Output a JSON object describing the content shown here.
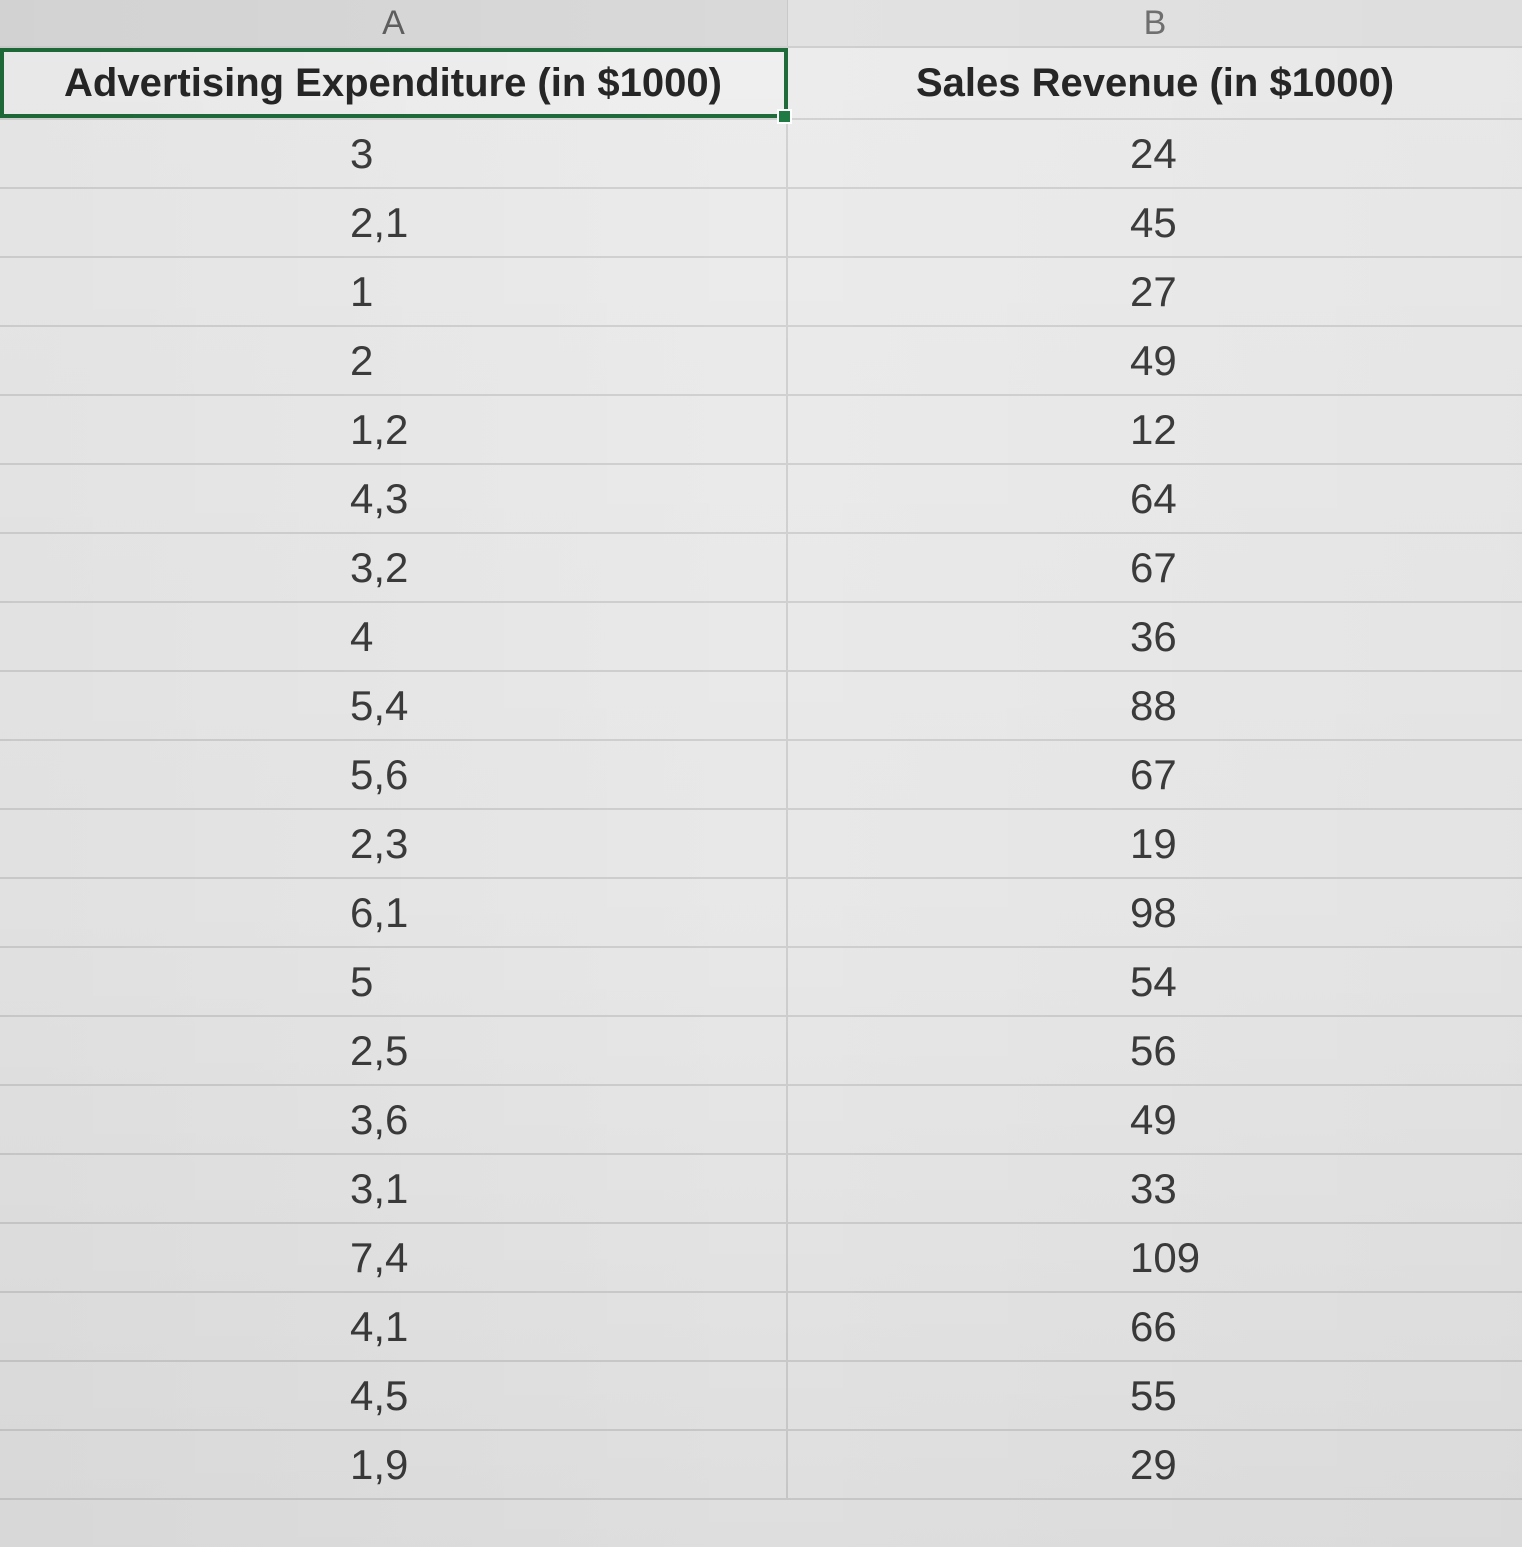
{
  "columns": [
    "A",
    "B"
  ],
  "headers": {
    "a": "Advertising Expenditure (in $1000)",
    "b": "Sales Revenue (in $1000)"
  },
  "rows": [
    {
      "a": "3",
      "b": "24"
    },
    {
      "a": "2,1",
      "b": "45"
    },
    {
      "a": "1",
      "b": "27"
    },
    {
      "a": "2",
      "b": "49"
    },
    {
      "a": "1,2",
      "b": "12"
    },
    {
      "a": "4,3",
      "b": "64"
    },
    {
      "a": "3,2",
      "b": "67"
    },
    {
      "a": "4",
      "b": "36"
    },
    {
      "a": "5,4",
      "b": "88"
    },
    {
      "a": "5,6",
      "b": "67"
    },
    {
      "a": "2,3",
      "b": "19"
    },
    {
      "a": "6,1",
      "b": "98"
    },
    {
      "a": "5",
      "b": "54"
    },
    {
      "a": "2,5",
      "b": "56"
    },
    {
      "a": "3,6",
      "b": "49"
    },
    {
      "a": "3,1",
      "b": "33"
    },
    {
      "a": "7,4",
      "b": "109"
    },
    {
      "a": "4,1",
      "b": "66"
    },
    {
      "a": "4,5",
      "b": "55"
    },
    {
      "a": "1,9",
      "b": "29"
    }
  ],
  "selected_cell": "A1"
}
